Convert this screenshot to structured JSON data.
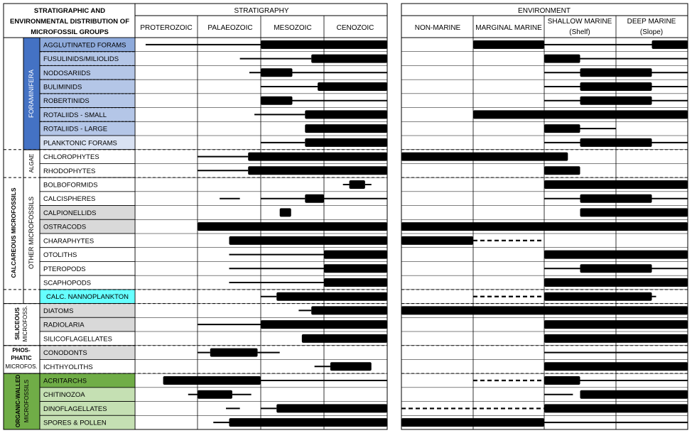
{
  "header": {
    "title_lines": [
      "STRATIGRAPHIC AND",
      "ENVIRONMENTAL DISTRIBUTION OF",
      "MICROFOSSIL GROUPS"
    ],
    "stratigraphy": "STRATIGRAPHY",
    "environment": "ENVIRONMENT",
    "strat_columns": [
      "PROTEROZOIC",
      "PALAEOZOIC",
      "MESOZOIC",
      "CENOZOIC"
    ],
    "env_columns": [
      [
        "NON-MARINE"
      ],
      [
        "MARGINAL MARINE"
      ],
      [
        "SHALLOW MARINE",
        "(Shelf)"
      ],
      [
        "DEEP MARINE",
        "(Slope)"
      ]
    ]
  },
  "categories": {
    "calcareous": "CALCAREOUS MICROFOSSILS",
    "foraminifera": "FORAMINIFERA",
    "algae": "ALGAE",
    "other": "OTHER MICROFOSSILS",
    "siliceous": [
      "SILICEOUS",
      "MICROFOSS."
    ],
    "phosphatic": [
      "PHOS-",
      "PHATIC",
      "MICROFOS."
    ],
    "organic": [
      "ORGANIC-WALLED",
      "MICROFOSSILS"
    ]
  },
  "colors": {
    "forams_header": "#4472c4",
    "forams_first": "#8eaadb",
    "forams_mid": "#b4c6e7",
    "forams_last": "#d9e2f3",
    "grey": "#d9d9d9",
    "cyan": "#66ffff",
    "green_dark": "#70ad47",
    "green_light": "#c5e0b3",
    "white": "#ffffff"
  },
  "rows": [
    {
      "label": "AGGLUTINATED FORAMS",
      "fill": "forams_first",
      "strat": [
        {
          "from": 0.17,
          "to": 2.0,
          "w": "thin"
        },
        {
          "from": 2.0,
          "to": 4.0,
          "w": "thick"
        }
      ],
      "env": [
        {
          "from": 1.0,
          "to": 2.0,
          "w": "thick"
        },
        {
          "from": 2.0,
          "to": 3.5,
          "w": "thin"
        },
        {
          "from": 3.5,
          "to": 4.0,
          "w": "thick"
        }
      ]
    },
    {
      "label": "FUSULINIDS/MILIOLIDS",
      "fill": "forams_mid",
      "strat": [
        {
          "from": 1.67,
          "to": 2.8,
          "w": "thin"
        },
        {
          "from": 2.8,
          "to": 4.0,
          "w": "thick"
        }
      ],
      "env": [
        {
          "from": 2.0,
          "to": 2.5,
          "w": "thick"
        },
        {
          "from": 2.5,
          "to": 4.0,
          "w": "thin"
        }
      ]
    },
    {
      "label": "NODOSARIIDS",
      "fill": "forams_mid",
      "strat": [
        {
          "from": 1.82,
          "to": 2.0,
          "w": "thin"
        },
        {
          "from": 2.0,
          "to": 2.5,
          "w": "thick"
        },
        {
          "from": 2.5,
          "to": 4.0,
          "w": "thin"
        }
      ],
      "env": [
        {
          "from": 2.0,
          "to": 2.5,
          "w": "thin"
        },
        {
          "from": 2.5,
          "to": 3.5,
          "w": "thick"
        },
        {
          "from": 3.5,
          "to": 4.0,
          "w": "thin"
        }
      ]
    },
    {
      "label": "BULIMINIDS",
      "fill": "forams_mid",
      "strat": [
        {
          "from": 2.0,
          "to": 2.9,
          "w": "thin"
        },
        {
          "from": 2.9,
          "to": 4.0,
          "w": "thick"
        }
      ],
      "env": [
        {
          "from": 2.0,
          "to": 2.5,
          "w": "thin"
        },
        {
          "from": 2.5,
          "to": 3.5,
          "w": "thick"
        },
        {
          "from": 3.5,
          "to": 4.0,
          "w": "thin"
        }
      ]
    },
    {
      "label": "ROBERTINIDS",
      "fill": "forams_mid",
      "strat": [
        {
          "from": 2.0,
          "to": 2.5,
          "w": "thick"
        },
        {
          "from": 2.5,
          "to": 4.0,
          "w": "thin"
        }
      ],
      "env": [
        {
          "from": 2.0,
          "to": 2.5,
          "w": "thin"
        },
        {
          "from": 2.5,
          "to": 3.5,
          "w": "thick"
        },
        {
          "from": 3.5,
          "to": 4.0,
          "w": "thin"
        }
      ]
    },
    {
      "label": "ROTALIIDS - SMALL",
      "fill": "forams_mid",
      "strat": [
        {
          "from": 1.9,
          "to": 2.7,
          "w": "thin"
        },
        {
          "from": 2.7,
          "to": 4.0,
          "w": "thick"
        }
      ],
      "env": [
        {
          "from": 1.0,
          "to": 4.0,
          "w": "thick"
        }
      ]
    },
    {
      "label": "ROTALIIDS - LARGE",
      "fill": "forams_mid",
      "strat": [
        {
          "from": 2.7,
          "to": 4.0,
          "w": "thick"
        }
      ],
      "env": [
        {
          "from": 2.0,
          "to": 2.5,
          "w": "thick"
        },
        {
          "from": 2.5,
          "to": 3.0,
          "w": "thin"
        }
      ]
    },
    {
      "label": "PLANKTONIC FORAMS",
      "fill": "forams_last",
      "strat": [
        {
          "from": 2.0,
          "to": 2.7,
          "w": "thin"
        },
        {
          "from": 2.7,
          "to": 4.0,
          "w": "thick"
        }
      ],
      "env": [
        {
          "from": 2.0,
          "to": 2.5,
          "w": "thin"
        },
        {
          "from": 2.5,
          "to": 3.5,
          "w": "thick"
        },
        {
          "from": 3.5,
          "to": 4.0,
          "w": "thin"
        }
      ]
    },
    {
      "label": "CHLOROPHYTES",
      "fill": "white",
      "strat": [
        {
          "from": 1.0,
          "to": 1.8,
          "w": "thin"
        },
        {
          "from": 1.8,
          "to": 4.0,
          "w": "thick"
        }
      ],
      "env": [
        {
          "from": 0.0,
          "to": 2.33,
          "w": "thick"
        }
      ]
    },
    {
      "label": "RHODOPHYTES",
      "fill": "white",
      "strat": [
        {
          "from": 1.0,
          "to": 1.8,
          "w": "thin"
        },
        {
          "from": 1.8,
          "to": 4.0,
          "w": "thick"
        }
      ],
      "env": [
        {
          "from": 2.0,
          "to": 2.5,
          "w": "thick"
        }
      ]
    },
    {
      "label": "BOLBOFORMIDS",
      "fill": "white",
      "strat": [
        {
          "from": 3.3,
          "to": 3.4,
          "w": "thin"
        },
        {
          "from": 3.4,
          "to": 3.65,
          "w": "thick"
        },
        {
          "from": 3.65,
          "to": 3.75,
          "w": "thin"
        }
      ],
      "env": [
        {
          "from": 2.0,
          "to": 4.0,
          "w": "thick"
        }
      ]
    },
    {
      "label": "CALCISPHERES",
      "fill": "white",
      "strat": [
        {
          "from": 1.35,
          "to": 1.67,
          "w": "thin"
        },
        {
          "from": 2.0,
          "to": 2.7,
          "w": "thin"
        },
        {
          "from": 2.7,
          "to": 3.0,
          "w": "thick"
        },
        {
          "from": 3.0,
          "to": 4.0,
          "w": "thin"
        }
      ],
      "env": [
        {
          "from": 2.0,
          "to": 2.5,
          "w": "thin"
        },
        {
          "from": 2.5,
          "to": 3.5,
          "w": "thick"
        },
        {
          "from": 3.5,
          "to": 4.0,
          "w": "thin"
        }
      ]
    },
    {
      "label": "CALPIONELLIDS",
      "fill": "grey",
      "strat": [
        {
          "from": 2.3,
          "to": 2.48,
          "w": "thick"
        }
      ],
      "env": [
        {
          "from": 2.5,
          "to": 4.0,
          "w": "thick"
        }
      ]
    },
    {
      "label": "OSTRACODS",
      "fill": "grey",
      "strat": [
        {
          "from": 1.0,
          "to": 4.0,
          "w": "thick"
        }
      ],
      "env": [
        {
          "from": 0.0,
          "to": 4.0,
          "w": "thick"
        }
      ]
    },
    {
      "label": "CHARAPHYTES",
      "fill": "white",
      "strat": [
        {
          "from": 1.5,
          "to": 4.0,
          "w": "thick"
        }
      ],
      "env": [
        {
          "from": 0.0,
          "to": 1.0,
          "w": "thick"
        },
        {
          "from": 1.0,
          "to": 2.0,
          "w": "dashed"
        }
      ]
    },
    {
      "label": "OTOLITHS",
      "fill": "white",
      "strat": [
        {
          "from": 1.5,
          "to": 3.0,
          "w": "thin"
        },
        {
          "from": 3.0,
          "to": 4.0,
          "w": "thick"
        }
      ],
      "env": [
        {
          "from": 2.0,
          "to": 4.0,
          "w": "thick"
        }
      ]
    },
    {
      "label": "PTEROPODS",
      "fill": "white",
      "strat": [
        {
          "from": 1.5,
          "to": 3.0,
          "w": "thin"
        },
        {
          "from": 3.0,
          "to": 4.0,
          "w": "thick"
        }
      ],
      "env": [
        {
          "from": 2.0,
          "to": 2.5,
          "w": "thin"
        },
        {
          "from": 2.5,
          "to": 3.5,
          "w": "thick"
        },
        {
          "from": 3.5,
          "to": 4.0,
          "w": "thin"
        }
      ]
    },
    {
      "label": "SCAPHOPODS",
      "fill": "white",
      "strat": [
        {
          "from": 1.5,
          "to": 3.0,
          "w": "thin"
        },
        {
          "from": 3.0,
          "to": 4.0,
          "w": "thick"
        }
      ],
      "env": [
        {
          "from": 2.0,
          "to": 4.0,
          "w": "thick"
        }
      ]
    },
    {
      "label": "CALC. NANNOPLANKTON",
      "fill": "cyan",
      "center": true,
      "strat": [
        {
          "from": 2.0,
          "to": 2.25,
          "w": "thin"
        },
        {
          "from": 2.25,
          "to": 4.0,
          "w": "thick"
        }
      ],
      "env": [
        {
          "from": 1.0,
          "to": 2.0,
          "w": "dashed"
        },
        {
          "from": 2.0,
          "to": 3.5,
          "w": "thick"
        },
        {
          "from": 3.5,
          "to": 3.5,
          "w": "thin"
        }
      ]
    },
    {
      "label": "DIATOMS",
      "fill": "grey",
      "strat": [
        {
          "from": 2.6,
          "to": 2.8,
          "w": "thin"
        },
        {
          "from": 2.8,
          "to": 4.0,
          "w": "thick"
        }
      ],
      "env": [
        {
          "from": 0.0,
          "to": 4.0,
          "w": "thick"
        }
      ]
    },
    {
      "label": "RADIOLARIA",
      "fill": "grey",
      "strat": [
        {
          "from": 1.0,
          "to": 2.0,
          "w": "thin"
        },
        {
          "from": 2.0,
          "to": 4.0,
          "w": "thick"
        }
      ],
      "env": [
        {
          "from": 2.0,
          "to": 4.0,
          "w": "thick"
        }
      ]
    },
    {
      "label": "SILICOFLAGELLATES",
      "fill": "white",
      "strat": [
        {
          "from": 2.65,
          "to": 4.0,
          "w": "thick"
        }
      ],
      "env": [
        {
          "from": 2.0,
          "to": 4.0,
          "w": "thick"
        }
      ]
    },
    {
      "label": "CONODONTS",
      "fill": "grey",
      "strat": [
        {
          "from": 1.0,
          "to": 1.2,
          "w": "thin"
        },
        {
          "from": 1.2,
          "to": 1.95,
          "w": "thick"
        },
        {
          "from": 1.95,
          "to": 2.3,
          "w": "thin"
        }
      ],
      "env": [
        {
          "from": 2.0,
          "to": 4.0,
          "w": "thin"
        }
      ]
    },
    {
      "label": "ICHTHYOLITHS",
      "fill": "white",
      "strat": [
        {
          "from": 2.85,
          "to": 3.1,
          "w": "thin"
        },
        {
          "from": 3.1,
          "to": 3.75,
          "w": "thick"
        }
      ],
      "env": [
        {
          "from": 2.0,
          "to": 4.0,
          "w": "thick"
        }
      ]
    },
    {
      "label": "ACRITARCHS",
      "fill": "green_dark",
      "strat": [
        {
          "from": 0.45,
          "to": 2.0,
          "w": "thick"
        },
        {
          "from": 2.0,
          "to": 4.0,
          "w": "thin"
        }
      ],
      "env": [
        {
          "from": 1.0,
          "to": 2.0,
          "w": "dashed"
        },
        {
          "from": 2.0,
          "to": 2.5,
          "w": "thick"
        },
        {
          "from": 2.5,
          "to": 4.0,
          "w": "thin"
        }
      ]
    },
    {
      "label": "CHITINOZOA",
      "fill": "green_light",
      "strat": [
        {
          "from": 0.85,
          "to": 1.0,
          "w": "thin"
        },
        {
          "from": 1.0,
          "to": 1.55,
          "w": "thick"
        },
        {
          "from": 1.55,
          "to": 1.85,
          "w": "thin"
        }
      ],
      "env": [
        {
          "from": 2.0,
          "to": 2.4,
          "w": "thin"
        },
        {
          "from": 2.5,
          "to": 4.0,
          "w": "thick"
        }
      ]
    },
    {
      "label": "DINOFLAGELLATES",
      "fill": "green_light",
      "strat": [
        {
          "from": 1.45,
          "to": 1.67,
          "w": "thin"
        },
        {
          "from": 2.0,
          "to": 2.25,
          "w": "thin"
        },
        {
          "from": 2.25,
          "to": 4.0,
          "w": "thick"
        }
      ],
      "env": [
        {
          "from": 0.0,
          "to": 2.0,
          "w": "dashed"
        },
        {
          "from": 2.0,
          "to": 4.0,
          "w": "thick"
        }
      ]
    },
    {
      "label": "SPORES & POLLEN",
      "fill": "green_light",
      "strat": [
        {
          "from": 1.25,
          "to": 1.5,
          "w": "thin"
        },
        {
          "from": 1.5,
          "to": 4.0,
          "w": "thick"
        }
      ],
      "env": [
        {
          "from": 0.0,
          "to": 2.0,
          "w": "thick"
        },
        {
          "from": 2.0,
          "to": 4.0,
          "w": "thin"
        }
      ]
    }
  ]
}
